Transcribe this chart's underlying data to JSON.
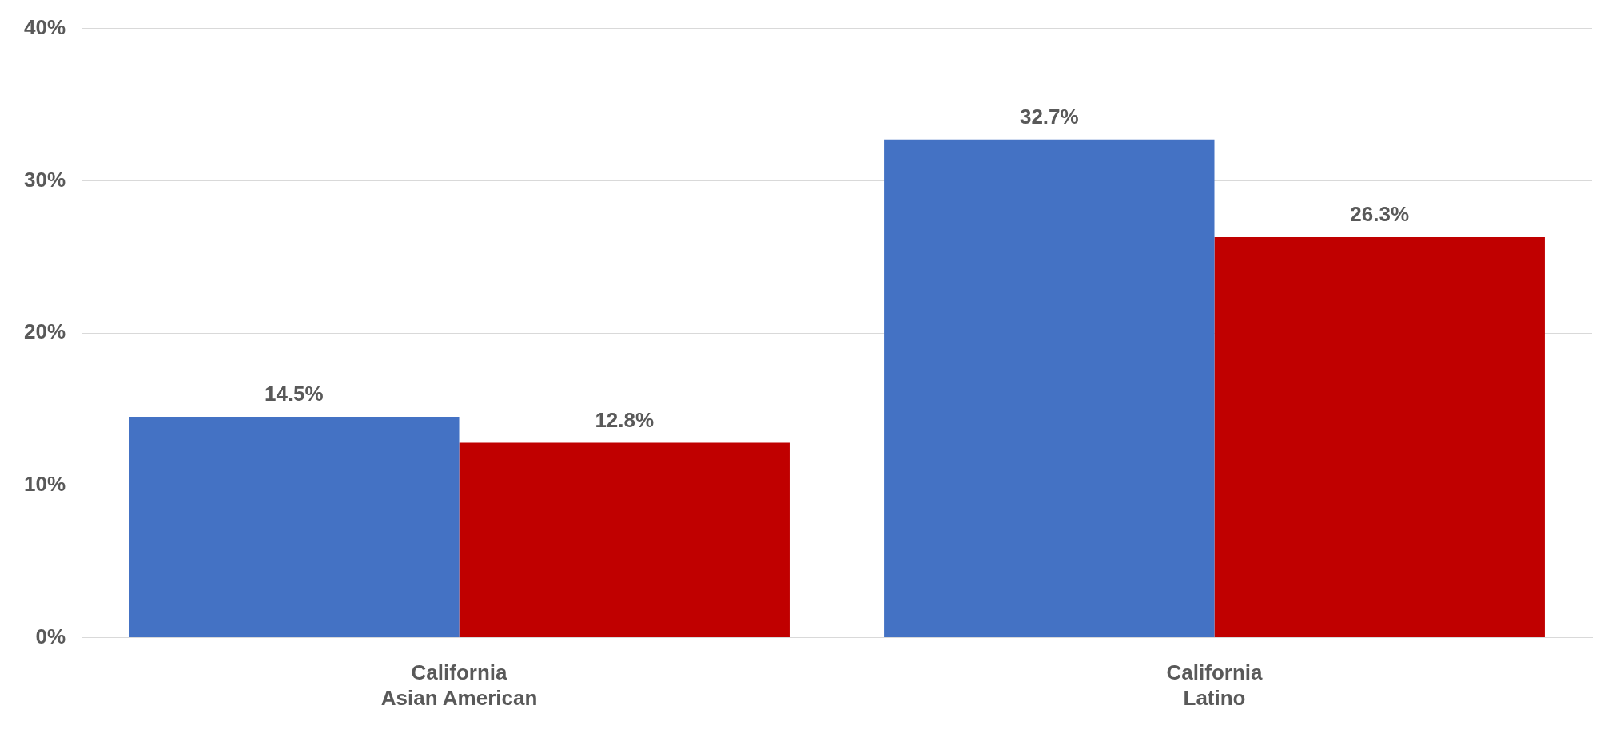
{
  "chart_data": {
    "type": "bar",
    "categories": [
      "California\nAsian American",
      "California\nLatino"
    ],
    "series": [
      {
        "color": "#4472c4",
        "values": [
          14.5,
          32.7
        ],
        "value_labels": [
          "14.5%",
          "32.7%"
        ]
      },
      {
        "color": "#c00000",
        "values": [
          12.8,
          26.3
        ],
        "value_labels": [
          "12.8%",
          "26.3%"
        ]
      }
    ],
    "ylim": [
      0,
      40
    ],
    "yticks": [
      {
        "value": 0,
        "label": "0%"
      },
      {
        "value": 10,
        "label": "10%"
      },
      {
        "value": 20,
        "label": "20%"
      },
      {
        "value": 30,
        "label": "30%"
      },
      {
        "value": 40,
        "label": "40%"
      }
    ],
    "grid": "y",
    "legend": false
  }
}
